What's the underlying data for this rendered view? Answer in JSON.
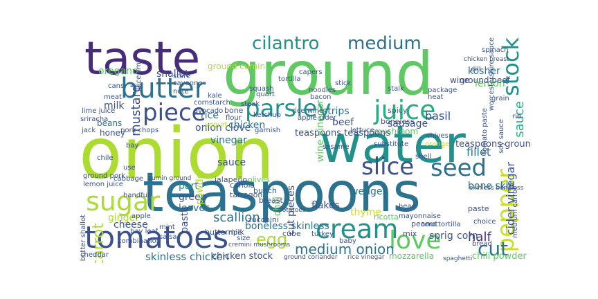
{
  "palette": {
    "purple": "#472c7a",
    "indigo": "#3b518b",
    "blue": "#2c728e",
    "teal": "#21918c",
    "green": "#28ae80",
    "mid_green": "#5ec962",
    "lime": "#addc30",
    "yellow_green": "#c8e020"
  },
  "words": [
    {
      "id": "onion",
      "text": "onion",
      "color": "#addc30",
      "vertical": false
    },
    {
      "id": "ground",
      "text": "ground",
      "color": "#5ec962",
      "vertical": false
    },
    {
      "id": "water",
      "text": "water",
      "color": "#21918c",
      "vertical": false
    },
    {
      "id": "teaspoons",
      "text": "teaspoons",
      "color": "#2c728e",
      "vertical": false
    },
    {
      "id": "taste",
      "text": "taste",
      "color": "#472c7a",
      "vertical": false
    },
    {
      "id": "tomatoes",
      "text": "tomatoes",
      "color": "#3b518b",
      "vertical": false
    },
    {
      "id": "butter",
      "text": "butter",
      "color": "#2c728e",
      "vertical": false
    },
    {
      "id": "parsley",
      "text": "parsley",
      "color": "#21918c",
      "vertical": false
    },
    {
      "id": "juice",
      "text": "juice",
      "color": "#28ae80",
      "vertical": false
    },
    {
      "id": "piece",
      "text": "piece",
      "color": "#3b518b",
      "vertical": false
    },
    {
      "id": "cream",
      "text": "cream",
      "color": "#21918c",
      "vertical": false
    },
    {
      "id": "sugar",
      "text": "sugar",
      "color": "#addc30",
      "vertical": false
    },
    {
      "id": "love",
      "text": "love",
      "color": "#5ec962",
      "vertical": false
    },
    {
      "id": "slice",
      "text": "slice",
      "color": "#3b518b",
      "vertical": false
    },
    {
      "id": "seed",
      "text": "seed",
      "color": "#2c728e",
      "vertical": false
    },
    {
      "id": "pepper",
      "text": "pepper",
      "color": "#c8e020",
      "vertical": true
    },
    {
      "id": "stock",
      "text": "stock",
      "color": "#21918c",
      "vertical": true
    },
    {
      "id": "cilantro",
      "text": "cilantro",
      "color": "#21918c",
      "vertical": false
    },
    {
      "id": "medium",
      "text": "medium",
      "color": "#2c728e",
      "vertical": false
    },
    {
      "id": "egg",
      "text": "egg",
      "color": "#addc30",
      "vertical": false
    },
    {
      "id": "cut",
      "text": "cut",
      "color": "#2c728e",
      "vertical": false
    },
    {
      "id": "carrot",
      "text": "carrot",
      "color": "#addc30",
      "vertical": true
    },
    {
      "id": "medium_onion",
      "text": "medium onion",
      "color": "#2c728e",
      "vertical": false
    },
    {
      "id": "mustard",
      "text": "mustard",
      "color": "#3b518b",
      "vertical": true
    },
    {
      "id": "sauce",
      "text": "sauce",
      "color": "#28ae80",
      "vertical": true
    },
    {
      "id": "skinless_chicken",
      "text": "skinless chicken",
      "color": "#2c728e",
      "vertical": false
    },
    {
      "id": "chicken_stock",
      "text": "chicken stock",
      "color": "#3b518b",
      "vertical": false
    },
    {
      "id": "mozzarella",
      "text": "mozzarella",
      "color": "#5ec962",
      "vertical": false
    },
    {
      "id": "chili_powder",
      "text": "chili powder",
      "color": "#5ec962",
      "vertical": false
    },
    {
      "id": "boneless_skinless",
      "text": "boneless skinless",
      "color": "#2c728e",
      "vertical": false
    },
    {
      "id": "scallion",
      "text": "scallion",
      "color": "#2c728e",
      "vertical": false
    },
    {
      "id": "cheese",
      "text": "cheese",
      "color": "#3b518b",
      "vertical": false
    },
    {
      "id": "half",
      "text": "half",
      "color": "#472c7a",
      "vertical": false
    },
    {
      "id": "sprig",
      "text": "sprig",
      "color": "#3b518b",
      "vertical": false
    },
    {
      "id": "corn",
      "text": "corn",
      "color": "#3b518b",
      "vertical": false
    },
    {
      "id": "ginger",
      "text": "ginger",
      "color": "#addc30",
      "vertical": false
    },
    {
      "id": "leaves",
      "text": "leaves",
      "color": "#2c728e",
      "vertical": false
    },
    {
      "id": "green",
      "text": "green",
      "color": "#3b518b",
      "vertical": false
    },
    {
      "id": "part",
      "text": "part",
      "color": "#21918c",
      "vertical": false
    },
    {
      "id": "sausage",
      "text": "sausage",
      "color": "#3b518b",
      "vertical": false
    },
    {
      "id": "basil",
      "text": "basil",
      "color": "#3b518b",
      "vertical": false
    },
    {
      "id": "lemon",
      "text": "lemon",
      "color": "#5ec962",
      "vertical": false
    },
    {
      "id": "kosher",
      "text": "kosher",
      "color": "#2c728e",
      "vertical": false
    },
    {
      "id": "ground_beef",
      "text": "ground beef",
      "color": "#3b518b",
      "vertical": false
    },
    {
      "id": "oregano",
      "text": "oregano",
      "color": "#5ec962",
      "vertical": false
    },
    {
      "id": "shallot",
      "text": "shallot",
      "color": "#3b518b",
      "vertical": false
    },
    {
      "id": "ground_cumin",
      "text": "ground cumin",
      "color": "#addc30",
      "vertical": false
    },
    {
      "id": "onion_clove",
      "text": "onion clove",
      "color": "#3b518b",
      "vertical": false
    },
    {
      "id": "vinegar",
      "text": "vinegar",
      "color": "#2c728e",
      "vertical": false
    },
    {
      "id": "rice",
      "text": "rice",
      "color": "#2c728e",
      "vertical": false
    },
    {
      "id": "chicken",
      "text": "chicken",
      "color": "#2c728e",
      "vertical": false
    },
    {
      "id": "beef",
      "text": "beef",
      "color": "#3b518b",
      "vertical": false
    },
    {
      "id": "strips",
      "text": "strips",
      "color": "#2c728e",
      "vertical": false
    },
    {
      "id": "mushroom",
      "text": "mushroom",
      "color": "#5ec962",
      "vertical": false
    },
    {
      "id": "wedges",
      "text": "wedges",
      "color": "#2c728e",
      "vertical": false
    },
    {
      "id": "flakes",
      "text": "flakes",
      "color": "#3b518b",
      "vertical": false
    },
    {
      "id": "thyme",
      "text": "thyme",
      "color": "#c8e020",
      "vertical": false
    },
    {
      "id": "fillet",
      "text": "fillet",
      "color": "#2c728e",
      "vertical": false
    },
    {
      "id": "bone_skin",
      "text": "bone skin",
      "color": "#2c728e",
      "vertical": false
    },
    {
      "id": "teaspoons_ground",
      "text": "teaspoons ground",
      "color": "#3b518b",
      "vertical": false
    },
    {
      "id": "teaspoons_teaspoons",
      "text": "teaspoons teaspoons",
      "color": "#3b518b",
      "vertical": false
    },
    {
      "id": "cider_vinegar",
      "text": "cider vinegar",
      "color": "#3b518b",
      "vertical": true
    },
    {
      "id": "milk",
      "text": "milk",
      "color": "#3b518b",
      "vertical": false
    },
    {
      "id": "honey",
      "text": "honey",
      "color": "#3b518b",
      "vertical": false
    },
    {
      "id": "beans",
      "text": "beans",
      "color": "#2c728e",
      "vertical": false
    },
    {
      "id": "sauce2",
      "text": "sauce",
      "color": "#3b518b",
      "vertical": false
    },
    {
      "id": "powder",
      "text": "powder",
      "color": "#addc30",
      "vertical": true
    },
    {
      "id": "pasta",
      "text": "pasta",
      "color": "#3b518b",
      "vertical": true
    },
    {
      "id": "chili",
      "text": "chili",
      "color": "#5ec962",
      "vertical": true
    },
    {
      "id": "cut_pieces",
      "text": "cut pieces",
      "color": "#3b518b",
      "vertical": true
    },
    {
      "id": "wine_vinegar",
      "text": "wine vinegar",
      "color": "#5ec962",
      "vertical": true
    },
    {
      "id": "bunch",
      "text": "bunch",
      "color": "#3b518b",
      "vertical": false
    },
    {
      "id": "breast",
      "text": "breast",
      "color": "#3b518b",
      "vertical": false
    },
    {
      "id": "buttermilk",
      "text": "buttermilk",
      "color": "#3b518b",
      "vertical": false
    },
    {
      "id": "zucchini",
      "text": "zucchini",
      "color": "#3b518b",
      "vertical": false
    },
    {
      "id": "tarragon",
      "text": "tarragon",
      "color": "#3b518b",
      "vertical": false
    },
    {
      "id": "canola",
      "text": "canola",
      "color": "#3b518b",
      "vertical": false
    },
    {
      "id": "olives",
      "text": "olives",
      "color": "#5ec962",
      "vertical": false
    },
    {
      "id": "jalapeno",
      "text": "jalapeño",
      "color": "#3b518b",
      "vertical": false
    },
    {
      "id": "cube",
      "text": "cube",
      "color": "#3b518b",
      "vertical": false
    },
    {
      "id": "peanut",
      "text": "peanut",
      "color": "#3b518b",
      "vertical": false
    },
    {
      "id": "mix",
      "text": "mix",
      "color": "#3b518b",
      "vertical": false
    },
    {
      "id": "ricotta",
      "text": "ricotta",
      "color": "#5ec962",
      "vertical": false
    },
    {
      "id": "mayonnaise",
      "text": "mayonnaise",
      "color": "#3b518b",
      "vertical": false
    },
    {
      "id": "corn_tortilla",
      "text": "corn tortilla",
      "color": "#3b518b",
      "vertical": false
    },
    {
      "id": "ground_pork",
      "text": "ground pork",
      "color": "#3b518b",
      "vertical": false
    },
    {
      "id": "store",
      "text": "store",
      "color": "#3b518b",
      "vertical": false
    },
    {
      "id": "kale",
      "text": "kale",
      "color": "#3b518b",
      "vertical": false
    },
    {
      "id": "bone",
      "text": "bone",
      "color": "#3b518b",
      "vertical": false
    },
    {
      "id": "cornstarch",
      "text": "cornstarch",
      "color": "#3b518b",
      "vertical": false
    },
    {
      "id": "avocado",
      "text": "avocado",
      "color": "#3b518b",
      "vertical": false
    },
    {
      "id": "flour",
      "text": "flour",
      "color": "#3b518b",
      "vertical": false
    },
    {
      "id": "yogurt",
      "text": "yogurt",
      "color": "#addc30",
      "vertical": false
    },
    {
      "id": "garnish",
      "text": "garnish",
      "color": "#3b518b",
      "vertical": false
    },
    {
      "id": "ketchup",
      "text": "ketchup",
      "color": "#3b518b",
      "vertical": false
    },
    {
      "id": "steak",
      "text": "steak",
      "color": "#3b518b",
      "vertical": false
    },
    {
      "id": "tortilla",
      "text": "tortilla",
      "color": "#3b518b",
      "vertical": false
    },
    {
      "id": "apple_cider",
      "text": "apple cider",
      "color": "#3b518b",
      "vertical": false
    },
    {
      "id": "rice_wine",
      "text": "rice wine",
      "color": "#3b518b",
      "vertical": false
    },
    {
      "id": "bacon",
      "text": "bacon",
      "color": "#3b518b",
      "vertical": false
    },
    {
      "id": "noodles",
      "text": "noodles",
      "color": "#3b518b",
      "vertical": false
    },
    {
      "id": "spicy",
      "text": "spicy",
      "color": "#3b518b",
      "vertical": false
    },
    {
      "id": "lettuce",
      "text": "lettuce",
      "color": "#3b518b",
      "vertical": false
    },
    {
      "id": "boneless",
      "text": "boneless",
      "color": "#3b518b",
      "vertical": false
    },
    {
      "id": "substitute",
      "text": "substitute",
      "color": "#3b518b",
      "vertical": false
    },
    {
      "id": "sesame",
      "text": "sesame",
      "color": "#3b518b",
      "vertical": false
    },
    {
      "id": "chives",
      "text": "chives",
      "color": "#3b518b",
      "vertical": false
    },
    {
      "id": "orange",
      "text": "orange",
      "color": "#c8e020",
      "vertical": false
    },
    {
      "id": "shell",
      "text": "shell",
      "color": "#3b518b",
      "vertical": false
    },
    {
      "id": "stick",
      "text": "stick",
      "color": "#3b518b",
      "vertical": false
    },
    {
      "id": "stalk",
      "text": "stalk",
      "color": "#3b518b",
      "vertical": false
    },
    {
      "id": "package",
      "text": "package",
      "color": "#3b518b",
      "vertical": false
    },
    {
      "id": "heat",
      "text": "heat",
      "color": "#3b518b",
      "vertical": false
    },
    {
      "id": "wine",
      "text": "wine",
      "color": "#3b518b",
      "vertical": false
    },
    {
      "id": "spinach",
      "text": "spinach",
      "color": "#3b518b",
      "vertical": false
    },
    {
      "id": "rib",
      "text": "rib",
      "color": "#3b518b",
      "vertical": false
    },
    {
      "id": "grain",
      "text": "grain",
      "color": "#3b518b",
      "vertical": false
    },
    {
      "id": "soy_sauce",
      "text": "soy sauce",
      "color": "#3b518b",
      "vertical": true
    },
    {
      "id": "worcestershire_sauce",
      "text": "worcestershire sauce",
      "color": "#3b518b",
      "vertical": true
    },
    {
      "id": "dill",
      "text": "dill",
      "color": "#3b518b",
      "vertical": false
    },
    {
      "id": "lime_juice",
      "text": "lime juice",
      "color": "#3b518b",
      "vertical": false
    },
    {
      "id": "juice_lime",
      "text": "juice lime",
      "color": "#3b518b",
      "vertical": true
    },
    {
      "id": "pork_chops",
      "text": "pork chops",
      "color": "#3b518b",
      "vertical": false
    },
    {
      "id": "sriracha",
      "text": "sriracha",
      "color": "#3b518b",
      "vertical": false
    },
    {
      "id": "bay",
      "text": "bay",
      "color": "#3b518b",
      "vertical": false
    },
    {
      "id": "chile",
      "text": "chile",
      "color": "#3b518b",
      "vertical": false
    },
    {
      "id": "use",
      "text": "use",
      "color": "#3b518b",
      "vertical": false
    },
    {
      "id": "lemon_juice",
      "text": "lemon juice",
      "color": "#3b518b",
      "vertical": false
    },
    {
      "id": "handful",
      "text": "handful",
      "color": "#3b518b",
      "vertical": false
    },
    {
      "id": "mint",
      "text": "mint",
      "color": "#3b518b",
      "vertical": false
    },
    {
      "id": "bay_leaf",
      "text": "bay leaf",
      "color": "#3b518b",
      "vertical": false
    },
    {
      "id": "salsa",
      "text": "salsa",
      "color": "#3b518b",
      "vertical": false
    },
    {
      "id": "butter_shallot",
      "text": "butter shallot",
      "color": "#3b518b",
      "vertical": true
    },
    {
      "id": "cheddar",
      "text": "cheddar",
      "color": "#3b518b",
      "vertical": false
    },
    {
      "id": "ground_coriander",
      "text": "ground coriander",
      "color": "#3b518b",
      "vertical": false
    },
    {
      "id": "rice_vinegar",
      "text": "rice vinegar",
      "color": "#3b518b",
      "vertical": false
    },
    {
      "id": "spaghetti",
      "text": "spaghetti",
      "color": "#3b518b",
      "vertical": false
    },
    {
      "id": "bread",
      "text": "bread",
      "color": "#3b518b",
      "vertical": false
    },
    {
      "id": "paste",
      "text": "paste",
      "color": "#3b518b",
      "vertical": false
    },
    {
      "id": "choice",
      "text": "choice",
      "color": "#3b518b",
      "vertical": false
    },
    {
      "id": "skinless_boneless",
      "text": "skinless boneless",
      "color": "#3b518b",
      "vertical": false
    },
    {
      "id": "medium_carrot",
      "text": "medium carrot",
      "color": "#3b518b",
      "vertical": true
    },
    {
      "id": "turkey",
      "text": "turkey",
      "color": "#3b518b",
      "vertical": false
    },
    {
      "id": "cremini_mushrooms",
      "text": "cremini mushrooms",
      "color": "#3b518b",
      "vertical": false
    },
    {
      "id": "potatoes",
      "text": "potatoes",
      "color": "#3b518b",
      "vertical": false
    },
    {
      "id": "cayenne",
      "text": "cayenne",
      "color": "#3b518b",
      "vertical": false
    },
    {
      "id": "note",
      "text": "note",
      "color": "#3b518b",
      "vertical": false
    },
    {
      "id": "meat",
      "text": "meat",
      "color": "#3b518b",
      "vertical": false
    },
    {
      "id": "cans",
      "text": "cans",
      "color": "#3b518b",
      "vertical": false
    },
    {
      "id": "capers",
      "text": "capers",
      "color": "#3b518b",
      "vertical": false
    },
    {
      "id": "quart",
      "text": "quart",
      "color": "#3b518b",
      "vertical": false
    },
    {
      "id": "squash",
      "text": "squash",
      "color": "#3b518b",
      "vertical": false
    },
    {
      "id": "ripe",
      "text": "ripe",
      "color": "#3b518b",
      "vertical": false
    },
    {
      "id": "size",
      "text": "size",
      "color": "#3b518b",
      "vertical": false
    },
    {
      "id": "baby",
      "text": "baby",
      "color": "#3b518b",
      "vertical": false
    },
    {
      "id": "head",
      "text": "head",
      "color": "#3b518b",
      "vertical": false
    },
    {
      "id": "jack",
      "text": "jack",
      "color": "#3b518b",
      "vertical": false
    },
    {
      "id": "cabbage",
      "text": "cabbage",
      "color": "#3b518b",
      "vertical": false
    },
    {
      "id": "apple",
      "text": "apple",
      "color": "#3b518b",
      "vertical": false
    },
    {
      "id": "combination",
      "text": "combination",
      "color": "#3b518b",
      "vertical": false
    },
    {
      "id": "cumin_ground",
      "text": "cumin ground",
      "color": "#3b518b",
      "vertical": false
    },
    {
      "id": "chicken_breast",
      "text": "chicken breast",
      "color": "#3b518b",
      "vertical": false
    },
    {
      "id": "tomato_paste",
      "text": "tomato paste",
      "color": "#3b518b",
      "vertical": true
    }
  ]
}
